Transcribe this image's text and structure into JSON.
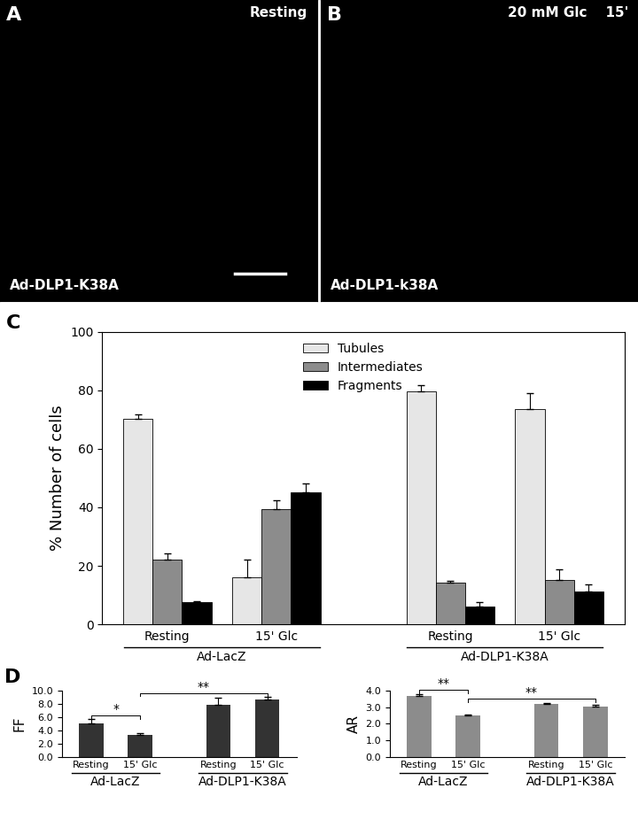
{
  "images": [
    {
      "panel_label": "A",
      "condition": "Resting",
      "construct": "Ad-DLP1-K38A"
    },
    {
      "panel_label": "B",
      "condition": "20 mM Glc    15'",
      "construct": "Ad-DLP1-k38A"
    }
  ],
  "chart_data": [
    {
      "type": "bar",
      "panel_label": "C",
      "y_label": "% Number of cells",
      "categories": [
        "Resting",
        "15' Glc",
        "Resting",
        "15' Glc"
      ],
      "groups": [
        "Ad-LacZ",
        "Ad-DLP1-K38A"
      ],
      "series": [
        {
          "name": "Tubules",
          "color": "#e6e6e6",
          "values": [
            70.2,
            16.0,
            79.5,
            73.5
          ],
          "errors": [
            1.5,
            6.0,
            2.2,
            5.5
          ]
        },
        {
          "name": "Intermediates",
          "color": "#8c8c8c",
          "values": [
            22.2,
            39.5,
            14.2,
            15.2
          ],
          "errors": [
            2.0,
            3.0,
            0.8,
            3.5
          ]
        },
        {
          "name": "Fragments",
          "color": "#000000",
          "values": [
            7.5,
            45.0,
            6.2,
            11.2
          ],
          "errors": [
            0.5,
            3.0,
            1.5,
            2.5
          ]
        }
      ],
      "ylim": [
        0,
        100
      ],
      "yticks": [
        0,
        20,
        40,
        60,
        80,
        100
      ],
      "legend": "upper center"
    },
    {
      "type": "bar",
      "panel_label": "D",
      "y_label": "FF",
      "categories": [
        "Resting",
        "15' Glc",
        "Resting",
        "15' Glc"
      ],
      "groups": [
        "Ad-LacZ",
        "Ad-DLP1-K38A"
      ],
      "values": [
        5.1,
        3.3,
        7.8,
        8.6
      ],
      "errors": [
        0.55,
        0.2,
        1.05,
        0.45
      ],
      "color": "#333333",
      "ylim": [
        0,
        10
      ],
      "yticks": [
        {
          "value": 0,
          "label": "0.0"
        },
        {
          "value": 2,
          "label": "2.0"
        },
        {
          "value": 4,
          "label": "4.0"
        },
        {
          "value": 6,
          "label": "6.0"
        },
        {
          "value": 8,
          "label": "8.0"
        },
        {
          "value": 10,
          "label": "10.0"
        }
      ],
      "significance": [
        {
          "from": 0,
          "to": 1,
          "label": "*"
        },
        {
          "from": 1,
          "to": 3,
          "label": "**"
        }
      ]
    },
    {
      "type": "bar",
      "y_label": "AR",
      "categories": [
        "Resting",
        "15' Glc",
        "Resting",
        "15' Glc"
      ],
      "groups": [
        "Ad-LacZ",
        "Ad-DLP1-K38A"
      ],
      "values": [
        3.65,
        2.5,
        3.17,
        3.05
      ],
      "errors": [
        0.15,
        0.05,
        0.08,
        0.07
      ],
      "color": "#8c8c8c",
      "ylim": [
        0,
        4
      ],
      "yticks": [
        {
          "value": 0,
          "label": "0.0"
        },
        {
          "value": 1,
          "label": "1.0"
        },
        {
          "value": 2,
          "label": "2.0"
        },
        {
          "value": 3,
          "label": "3.0"
        },
        {
          "value": 4,
          "label": "4.0"
        }
      ],
      "significance": [
        {
          "from": 0,
          "to": 1,
          "label": "**"
        },
        {
          "from": 1,
          "to": 3,
          "label": "**"
        }
      ]
    }
  ]
}
